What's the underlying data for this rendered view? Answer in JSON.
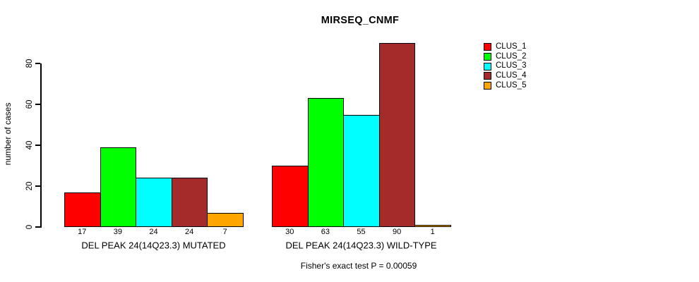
{
  "chart_data": {
    "type": "bar",
    "title": "MIRSEQ_CNMF",
    "ylabel": "number of cases",
    "xlabel": "",
    "ylim": [
      0,
      93
    ],
    "yticks": [
      0,
      20,
      40,
      60,
      80
    ],
    "grid": false,
    "legend_position": "right",
    "annotation": "Fisher's exact test P = 0.00059",
    "categories": [
      "DEL PEAK 24(14Q23.3) MUTATED",
      "DEL PEAK 24(14Q23.3) WILD-TYPE"
    ],
    "series": [
      {
        "name": "CLUS_1",
        "color": "#ff0000",
        "values": [
          17,
          30
        ]
      },
      {
        "name": "CLUS_2",
        "color": "#00ff00",
        "values": [
          39,
          63
        ]
      },
      {
        "name": "CLUS_3",
        "color": "#00ffff",
        "values": [
          24,
          55
        ]
      },
      {
        "name": "CLUS_4",
        "color": "#a52a2a",
        "values": [
          24,
          90
        ]
      },
      {
        "name": "CLUS_5",
        "color": "#ffa500",
        "values": [
          7,
          1
        ]
      }
    ],
    "bar_value_labels": {
      "DEL PEAK 24(14Q23.3) MUTATED": [
        17,
        39,
        24,
        24,
        7
      ],
      "DEL PEAK 24(14Q23.3) WILD-TYPE": [
        30,
        63,
        55,
        90,
        1
      ]
    }
  }
}
